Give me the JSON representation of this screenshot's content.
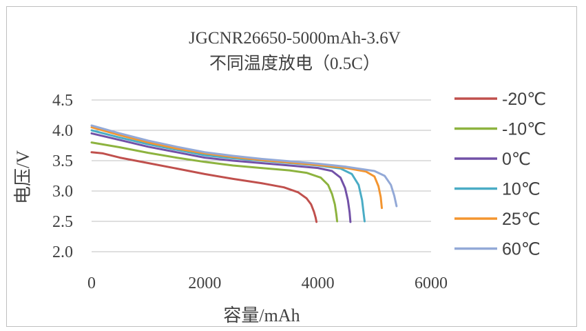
{
  "chart_data": {
    "type": "line",
    "title": "JGCNR26650-5000mAh-3.6V",
    "subtitle": "不同温度放电（0.5C）",
    "xlabel": "容量/mAh",
    "ylabel": "电压/V",
    "xlim": [
      0,
      6000
    ],
    "ylim": [
      2.0,
      4.5
    ],
    "xticks": [
      "0",
      "2000",
      "4000",
      "6000"
    ],
    "yticks": [
      "2.0",
      "2.5",
      "3.0",
      "3.5",
      "4.0",
      "4.5"
    ],
    "grid": true,
    "legend_position": "right",
    "series": [
      {
        "name": "-20℃",
        "color": "#c0504d",
        "x": [
          0,
          200,
          500,
          1000,
          1500,
          2000,
          2500,
          3000,
          3400,
          3650,
          3800,
          3880,
          3930,
          3960,
          3975
        ],
        "y": [
          3.64,
          3.62,
          3.55,
          3.46,
          3.37,
          3.28,
          3.2,
          3.13,
          3.06,
          2.98,
          2.88,
          2.78,
          2.66,
          2.56,
          2.49
        ]
      },
      {
        "name": "-10℃",
        "color": "#8db33f",
        "x": [
          0,
          500,
          1000,
          1500,
          2000,
          2500,
          3000,
          3500,
          3800,
          4050,
          4180,
          4250,
          4300,
          4325,
          4340
        ],
        "y": [
          3.8,
          3.72,
          3.63,
          3.55,
          3.48,
          3.42,
          3.38,
          3.34,
          3.3,
          3.22,
          3.1,
          2.95,
          2.78,
          2.62,
          2.5
        ]
      },
      {
        "name": "0℃",
        "color": "#7251a7",
        "x": [
          0,
          500,
          1000,
          1500,
          2000,
          2500,
          3000,
          3500,
          4000,
          4250,
          4400,
          4480,
          4530,
          4560,
          4575
        ],
        "y": [
          3.95,
          3.84,
          3.73,
          3.64,
          3.55,
          3.5,
          3.46,
          3.42,
          3.38,
          3.33,
          3.22,
          3.05,
          2.85,
          2.65,
          2.49
        ]
      },
      {
        "name": "10℃",
        "color": "#4aacc5",
        "x": [
          0,
          500,
          1000,
          1500,
          2000,
          2500,
          3000,
          3500,
          4000,
          4400,
          4600,
          4720,
          4780,
          4810,
          4825
        ],
        "y": [
          4.0,
          3.88,
          3.77,
          3.68,
          3.59,
          3.54,
          3.5,
          3.46,
          3.42,
          3.37,
          3.28,
          3.1,
          2.85,
          2.62,
          2.5
        ]
      },
      {
        "name": "25℃",
        "color": "#f39530",
        "x": [
          0,
          500,
          1000,
          1500,
          2000,
          2500,
          3000,
          3500,
          4000,
          4500,
          4850,
          5000,
          5070,
          5110,
          5130
        ],
        "y": [
          4.05,
          3.92,
          3.8,
          3.7,
          3.62,
          3.56,
          3.51,
          3.47,
          3.43,
          3.38,
          3.32,
          3.24,
          3.08,
          2.9,
          2.72
        ]
      },
      {
        "name": "60℃",
        "color": "#93a9d7",
        "x": [
          0,
          500,
          1000,
          1500,
          2000,
          2500,
          3000,
          3500,
          4000,
          4500,
          5000,
          5180,
          5290,
          5350,
          5390
        ],
        "y": [
          4.08,
          3.95,
          3.83,
          3.73,
          3.64,
          3.58,
          3.53,
          3.49,
          3.45,
          3.4,
          3.33,
          3.25,
          3.1,
          2.92,
          2.75
        ]
      }
    ]
  }
}
